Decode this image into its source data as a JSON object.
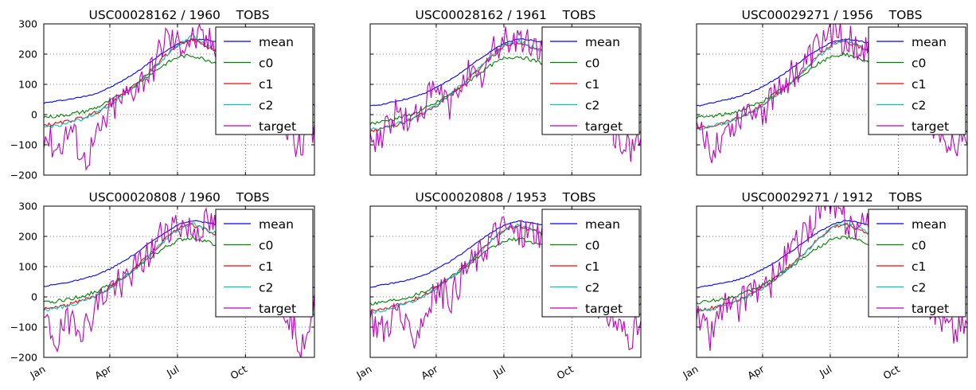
{
  "figure": {
    "suptitle": ""
  },
  "chart_data": [
    {
      "type": "line",
      "title": "USC00028162 / 1960    TOBS",
      "xticks": [
        "Jan",
        "Apr",
        "Jul",
        "Oct"
      ],
      "ylim": [
        -200,
        300
      ],
      "yticks": [
        "300",
        "200",
        "100",
        "0",
        "−100",
        "−200"
      ],
      "show_yticklabels": true,
      "show_xticklabels": false,
      "grid": true,
      "legend": {
        "location": "upper-right",
        "entries": [
          "mean",
          "c0",
          "c1",
          "c2",
          "target"
        ]
      },
      "series": [
        {
          "name": "mean",
          "color": "#0000ff",
          "values": [
            38,
            45,
            52,
            60,
            72,
            92,
            117,
            145,
            178,
            210,
            236,
            250,
            248,
            238,
            218,
            182,
            135,
            88,
            55,
            38,
            32
          ]
        },
        {
          "name": "c0",
          "color": "#008000",
          "values": [
            -8,
            -5,
            2,
            10,
            25,
            48,
            75,
            105,
            138,
            168,
            192,
            195,
            182,
            168,
            150,
            118,
            78,
            35,
            0,
            -15,
            -20
          ]
        },
        {
          "name": "c1",
          "color": "#ff0000",
          "values": [
            -35,
            -30,
            -20,
            -8,
            10,
            38,
            72,
            108,
            150,
            195,
            235,
            248,
            225,
            205,
            180,
            145,
            95,
            40,
            -10,
            -40,
            -45
          ]
        },
        {
          "name": "c2",
          "color": "#00bfbf",
          "values": [
            -42,
            -36,
            -26,
            -12,
            8,
            36,
            70,
            106,
            148,
            192,
            233,
            262,
            230,
            208,
            182,
            146,
            96,
            42,
            -12,
            -42,
            -48
          ]
        },
        {
          "name": "target",
          "color": "#bf00bf",
          "values": [
            -60,
            -110,
            -40,
            -150,
            -70,
            20,
            60,
            110,
            150,
            260,
            235,
            255,
            245,
            230,
            190,
            140,
            60,
            10,
            -40,
            -120,
            -60
          ]
        }
      ]
    },
    {
      "type": "line",
      "title": "USC00028162 / 1961    TOBS",
      "xticks": [
        "Jan",
        "Apr",
        "Jul",
        "Oct"
      ],
      "ylim": [
        -200,
        300
      ],
      "yticks": [
        "300",
        "200",
        "100",
        "0",
        "−100",
        "−200"
      ],
      "show_yticklabels": false,
      "show_xticklabels": false,
      "grid": true,
      "legend": {
        "location": "upper-right",
        "entries": [
          "mean",
          "c0",
          "c1",
          "c2",
          "target"
        ]
      },
      "series": [
        {
          "name": "mean",
          "color": "#0000ff",
          "values": [
            28,
            35,
            45,
            55,
            70,
            92,
            118,
            148,
            182,
            212,
            238,
            250,
            246,
            236,
            216,
            180,
            132,
            86,
            52,
            36,
            30
          ]
        },
        {
          "name": "c0",
          "color": "#008000",
          "values": [
            -30,
            -22,
            -12,
            0,
            18,
            42,
            70,
            100,
            135,
            165,
            188,
            192,
            180,
            166,
            148,
            116,
            76,
            32,
            -4,
            -20,
            -25
          ]
        },
        {
          "name": "c1",
          "color": "#ff0000",
          "values": [
            -55,
            -45,
            -32,
            -18,
            5,
            32,
            68,
            105,
            148,
            192,
            230,
            240,
            222,
            202,
            178,
            142,
            92,
            36,
            -15,
            -50,
            -60
          ]
        },
        {
          "name": "c2",
          "color": "#00bfbf",
          "values": [
            -50,
            -42,
            -30,
            -16,
            6,
            34,
            70,
            108,
            150,
            194,
            232,
            244,
            224,
            204,
            180,
            144,
            94,
            38,
            -12,
            -46,
            -55
          ]
        },
        {
          "name": "target",
          "color": "#bf00bf",
          "values": [
            -100,
            -50,
            10,
            -30,
            40,
            80,
            20,
            150,
            100,
            200,
            255,
            245,
            230,
            210,
            170,
            130,
            50,
            -20,
            -60,
            -110,
            -80
          ]
        }
      ]
    },
    {
      "type": "line",
      "title": "USC00029271 / 1956    TOBS",
      "xticks": [
        "Jan",
        "Apr",
        "Jul",
        "Oct"
      ],
      "ylim": [
        -200,
        300
      ],
      "yticks": [
        "300",
        "200",
        "100",
        "0",
        "−100",
        "−200"
      ],
      "show_yticklabels": false,
      "show_xticklabels": false,
      "grid": true,
      "legend": {
        "location": "upper-right",
        "entries": [
          "mean",
          "c0",
          "c1",
          "c2",
          "target"
        ]
      },
      "series": [
        {
          "name": "mean",
          "color": "#0000ff",
          "values": [
            28,
            38,
            48,
            58,
            74,
            95,
            122,
            152,
            186,
            216,
            240,
            250,
            244,
            234,
            214,
            178,
            130,
            84,
            50,
            35,
            30
          ]
        },
        {
          "name": "c0",
          "color": "#008000",
          "values": [
            -10,
            -6,
            0,
            10,
            26,
            48,
            75,
            105,
            138,
            168,
            192,
            200,
            186,
            170,
            150,
            118,
            78,
            34,
            -2,
            -18,
            -22
          ]
        },
        {
          "name": "c1",
          "color": "#ff0000",
          "values": [
            -45,
            -38,
            -26,
            -12,
            8,
            36,
            70,
            108,
            150,
            194,
            232,
            242,
            224,
            204,
            180,
            144,
            94,
            38,
            -12,
            -46,
            -55
          ]
        },
        {
          "name": "c2",
          "color": "#00bfbf",
          "values": [
            -48,
            -40,
            -28,
            -14,
            6,
            34,
            68,
            106,
            148,
            192,
            230,
            246,
            226,
            206,
            182,
            146,
            96,
            40,
            -10,
            -44,
            -52
          ]
        },
        {
          "name": "target",
          "color": "#bf00bf",
          "values": [
            -50,
            -120,
            -60,
            -20,
            40,
            10,
            90,
            130,
            160,
            230,
            270,
            250,
            230,
            220,
            180,
            120,
            40,
            -10,
            -60,
            -90,
            -70
          ]
        }
      ]
    },
    {
      "type": "line",
      "title": "USC00020808 / 1960    TOBS",
      "xticks": [
        "Jan",
        "Apr",
        "Jul",
        "Oct"
      ],
      "ylim": [
        -200,
        300
      ],
      "yticks": [
        "300",
        "200",
        "100",
        "0",
        "−100",
        "−200"
      ],
      "show_yticklabels": true,
      "show_xticklabels": true,
      "grid": true,
      "legend": {
        "location": "upper-right",
        "entries": [
          "mean",
          "c0",
          "c1",
          "c2",
          "target"
        ]
      },
      "series": [
        {
          "name": "mean",
          "color": "#0000ff",
          "values": [
            35,
            42,
            50,
            60,
            74,
            95,
            120,
            150,
            184,
            214,
            240,
            252,
            246,
            236,
            216,
            180,
            132,
            86,
            52,
            36,
            32
          ]
        },
        {
          "name": "c0",
          "color": "#008000",
          "values": [
            -20,
            -14,
            -6,
            4,
            20,
            42,
            70,
            100,
            134,
            164,
            188,
            196,
            184,
            168,
            148,
            116,
            76,
            32,
            -4,
            -20,
            -24
          ]
        },
        {
          "name": "c1",
          "color": "#ff0000",
          "values": [
            -40,
            -34,
            -24,
            -10,
            8,
            34,
            68,
            106,
            148,
            192,
            228,
            238,
            222,
            202,
            178,
            142,
            92,
            36,
            -14,
            -48,
            -56
          ]
        },
        {
          "name": "c2",
          "color": "#00bfbf",
          "values": [
            -44,
            -38,
            -26,
            -12,
            6,
            32,
            66,
            104,
            146,
            190,
            226,
            244,
            224,
            204,
            180,
            144,
            94,
            38,
            -12,
            -46,
            -54
          ]
        },
        {
          "name": "target",
          "color": "#bf00bf",
          "values": [
            -80,
            -150,
            -60,
            -110,
            -20,
            30,
            60,
            100,
            150,
            230,
            240,
            215,
            240,
            225,
            190,
            140,
            70,
            0,
            -50,
            -150,
            -40
          ]
        }
      ]
    },
    {
      "type": "line",
      "title": "USC00020808 / 1953    TOBS",
      "xticks": [
        "Jan",
        "Apr",
        "Jul",
        "Oct"
      ],
      "ylim": [
        -200,
        300
      ],
      "yticks": [
        "300",
        "200",
        "100",
        "0",
        "−100",
        "−200"
      ],
      "show_yticklabels": false,
      "show_xticklabels": true,
      "grid": true,
      "legend": {
        "location": "upper-right",
        "entries": [
          "mean",
          "c0",
          "c1",
          "c2",
          "target"
        ]
      },
      "series": [
        {
          "name": "mean",
          "color": "#0000ff",
          "values": [
            32,
            40,
            48,
            58,
            72,
            94,
            120,
            150,
            184,
            214,
            240,
            250,
            244,
            234,
            214,
            178,
            130,
            84,
            50,
            34,
            30
          ]
        },
        {
          "name": "c0",
          "color": "#008000",
          "values": [
            -22,
            -16,
            -8,
            2,
            18,
            40,
            68,
            98,
            132,
            162,
            186,
            192,
            180,
            166,
            148,
            116,
            76,
            32,
            -4,
            -20,
            -26
          ]
        },
        {
          "name": "c1",
          "color": "#ff0000",
          "values": [
            -48,
            -40,
            -28,
            -14,
            6,
            32,
            66,
            104,
            146,
            190,
            226,
            236,
            220,
            200,
            176,
            140,
            90,
            34,
            -16,
            -50,
            -60
          ]
        },
        {
          "name": "c2",
          "color": "#00bfbf",
          "values": [
            -52,
            -44,
            -30,
            -16,
            4,
            30,
            64,
            102,
            144,
            188,
            224,
            238,
            222,
            202,
            178,
            142,
            92,
            36,
            -14,
            -48,
            -58
          ]
        },
        {
          "name": "target",
          "color": "#bf00bf",
          "values": [
            -70,
            -110,
            -40,
            -150,
            -60,
            20,
            0,
            90,
            130,
            200,
            230,
            200,
            220,
            210,
            170,
            120,
            40,
            -30,
            -80,
            -130,
            -100
          ]
        }
      ]
    },
    {
      "type": "line",
      "title": "USC00029271 / 1912    TOBS",
      "xticks": [
        "Jan",
        "Apr",
        "Jul",
        "Oct"
      ],
      "ylim": [
        -200,
        300
      ],
      "yticks": [
        "300",
        "200",
        "100",
        "0",
        "−100",
        "−200"
      ],
      "show_yticklabels": false,
      "show_xticklabels": true,
      "grid": true,
      "legend": {
        "location": "upper-right",
        "entries": [
          "mean",
          "c0",
          "c1",
          "c2",
          "target"
        ]
      },
      "series": [
        {
          "name": "mean",
          "color": "#0000ff",
          "values": [
            30,
            38,
            46,
            56,
            72,
            94,
            120,
            150,
            184,
            214,
            240,
            252,
            246,
            236,
            216,
            180,
            132,
            86,
            52,
            36,
            32
          ]
        },
        {
          "name": "c0",
          "color": "#008000",
          "values": [
            -20,
            -14,
            -6,
            4,
            20,
            42,
            70,
            100,
            134,
            164,
            190,
            198,
            186,
            170,
            150,
            118,
            78,
            34,
            -2,
            -18,
            -24
          ]
        },
        {
          "name": "c1",
          "color": "#ff0000",
          "values": [
            -46,
            -38,
            -26,
            -12,
            8,
            34,
            68,
            106,
            148,
            192,
            230,
            240,
            224,
            204,
            180,
            144,
            94,
            38,
            -12,
            -46,
            -54
          ]
        },
        {
          "name": "c2",
          "color": "#00bfbf",
          "values": [
            -50,
            -42,
            -28,
            -14,
            6,
            32,
            66,
            104,
            146,
            190,
            228,
            246,
            226,
            206,
            182,
            146,
            96,
            40,
            -10,
            -44,
            -52
          ]
        },
        {
          "name": "target",
          "color": "#bf00bf",
          "values": [
            -60,
            -130,
            -20,
            -50,
            40,
            10,
            80,
            160,
            200,
            300,
            290,
            250,
            230,
            220,
            200,
            130,
            50,
            -10,
            -60,
            -110,
            -80
          ]
        }
      ]
    }
  ]
}
